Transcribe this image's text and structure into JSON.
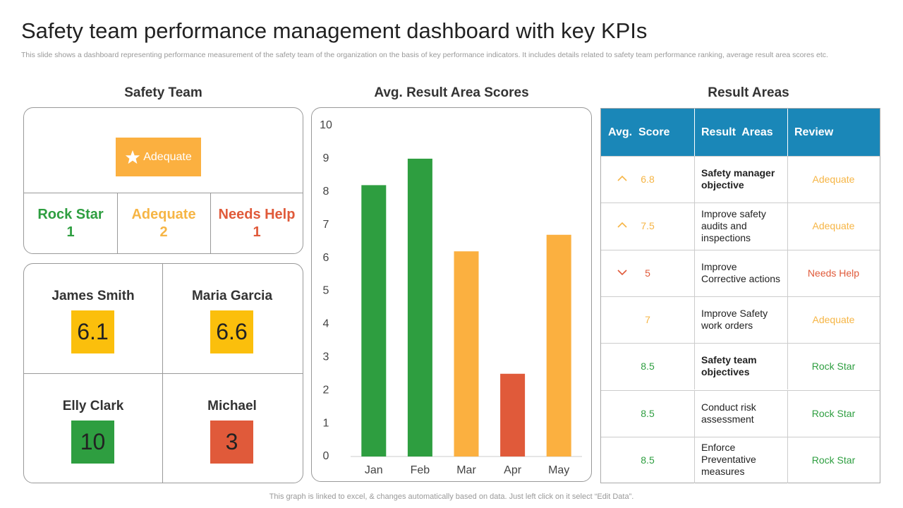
{
  "header": {
    "title": "Safety team performance management dashboard with key KPIs",
    "subtitle": "This slide shows a dashboard representing performance measurement of the safety team of the organization on the basis of key performance indicators. It includes details related to safety team performance ranking, average result area scores etc."
  },
  "safety_team": {
    "heading": "Safety Team",
    "badge": "Adequate",
    "ratings": [
      {
        "label": "Rock Star",
        "count": 1,
        "color": "#2e9e40"
      },
      {
        "label": "Adequate",
        "count": 2,
        "color": "#f6b545"
      },
      {
        "label": "Needs Help",
        "count": 1,
        "color": "#e05a3a"
      }
    ],
    "members": [
      {
        "name": "James Smith",
        "score": 6.1,
        "color": "#fbbf0c"
      },
      {
        "name": "Maria Garcia",
        "score": 6.6,
        "color": "#fbbf0c"
      },
      {
        "name": "Elly Clark",
        "score": 10,
        "color": "#2e9e40"
      },
      {
        "name": "Michael",
        "score": 3,
        "color": "#e05a3a"
      }
    ]
  },
  "chart_data": {
    "type": "bar",
    "title": "Avg. Result Area Scores",
    "categories": [
      "Jan",
      "Feb",
      "Mar",
      "Apr",
      "May"
    ],
    "values": [
      8.2,
      9,
      6.2,
      2.5,
      6.7
    ],
    "colors": [
      "#2e9e40",
      "#2e9e40",
      "#fbb040",
      "#e05a3a",
      "#fbb040"
    ],
    "ylim": [
      0,
      10
    ],
    "yticks": [
      0,
      1,
      2,
      3,
      4,
      5,
      6,
      7,
      8,
      9,
      10
    ],
    "grid": false
  },
  "result_areas": {
    "heading": "Result Areas",
    "columns": [
      "Avg.  Score",
      "Result  Areas",
      "Review"
    ],
    "rows": [
      {
        "score": 6.8,
        "area": "Safety manager objective",
        "review": "Adequate",
        "color": "#f6b545",
        "trend": "up",
        "bold": true
      },
      {
        "score": 7.5,
        "area": "Improve safety audits and inspections",
        "review": "Adequate",
        "color": "#f6b545",
        "trend": "up"
      },
      {
        "score": 5,
        "area": "Improve Corrective actions",
        "review": "Needs Help",
        "color": "#e05a3a",
        "trend": "down"
      },
      {
        "score": 7,
        "area": "Improve Safety work orders",
        "review": "Adequate",
        "color": "#f6b545"
      },
      {
        "score": 8.5,
        "area": "Safety team objectives",
        "review": "Rock Star",
        "color": "#2e9e40",
        "bold": true
      },
      {
        "score": 8.5,
        "area": "Conduct risk assessment",
        "review": "Rock Star",
        "color": "#2e9e40"
      },
      {
        "score": 8.5,
        "area": "Enforce Preventative measures",
        "review": "Rock Star",
        "color": "#2e9e40"
      }
    ]
  },
  "footer": "This graph is linked to excel, & changes automatically based on data. Just left click on it select “Edit Data”."
}
